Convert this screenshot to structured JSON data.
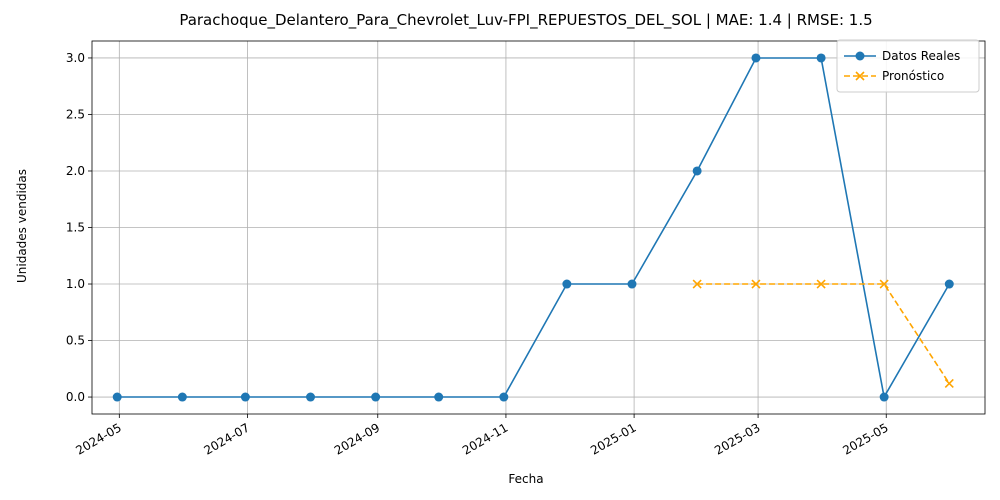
{
  "chart_data": {
    "type": "line",
    "title": "Parachoque_Delantero_Para_Chevrolet_Luv-FPI_REPUESTOS_DEL_SOL | MAE: 1.4 | RMSE: 1.5",
    "xlabel": "Fecha",
    "ylabel": "Unidades vendidas",
    "xlim": [
      "2024-04-18",
      "2025-06-17"
    ],
    "ylim": [
      -0.15,
      3.15
    ],
    "x_ticks": [
      "2024-05",
      "2024-07",
      "2024-09",
      "2024-11",
      "2025-01",
      "2025-03",
      "2025-05"
    ],
    "y_ticks": [
      "0.0",
      "0.5",
      "1.0",
      "1.5",
      "2.0",
      "2.5",
      "3.0"
    ],
    "grid": true,
    "legend_position": "upper-right",
    "series": [
      {
        "name": "Datos Reales",
        "color": "#1f77b4",
        "style": "solid",
        "marker": "circle",
        "points": [
          {
            "x": "2024-04-30",
            "y": 0
          },
          {
            "x": "2024-05-31",
            "y": 0
          },
          {
            "x": "2024-06-30",
            "y": 0
          },
          {
            "x": "2024-07-31",
            "y": 0
          },
          {
            "x": "2024-08-31",
            "y": 0
          },
          {
            "x": "2024-09-30",
            "y": 0
          },
          {
            "x": "2024-10-31",
            "y": 0
          },
          {
            "x": "2024-11-30",
            "y": 1
          },
          {
            "x": "2024-12-31",
            "y": 1
          },
          {
            "x": "2025-01-31",
            "y": 2
          },
          {
            "x": "2025-02-28",
            "y": 3
          },
          {
            "x": "2025-03-31",
            "y": 3
          },
          {
            "x": "2025-04-30",
            "y": 0
          },
          {
            "x": "2025-05-31",
            "y": 1
          }
        ]
      },
      {
        "name": "Pronóstico",
        "color": "#ffa500",
        "style": "dashed",
        "marker": "x",
        "points": [
          {
            "x": "2025-01-31",
            "y": 1.0
          },
          {
            "x": "2025-02-28",
            "y": 1.0
          },
          {
            "x": "2025-03-31",
            "y": 1.0
          },
          {
            "x": "2025-04-30",
            "y": 1.0
          },
          {
            "x": "2025-05-31",
            "y": 0.12
          }
        ]
      }
    ]
  }
}
